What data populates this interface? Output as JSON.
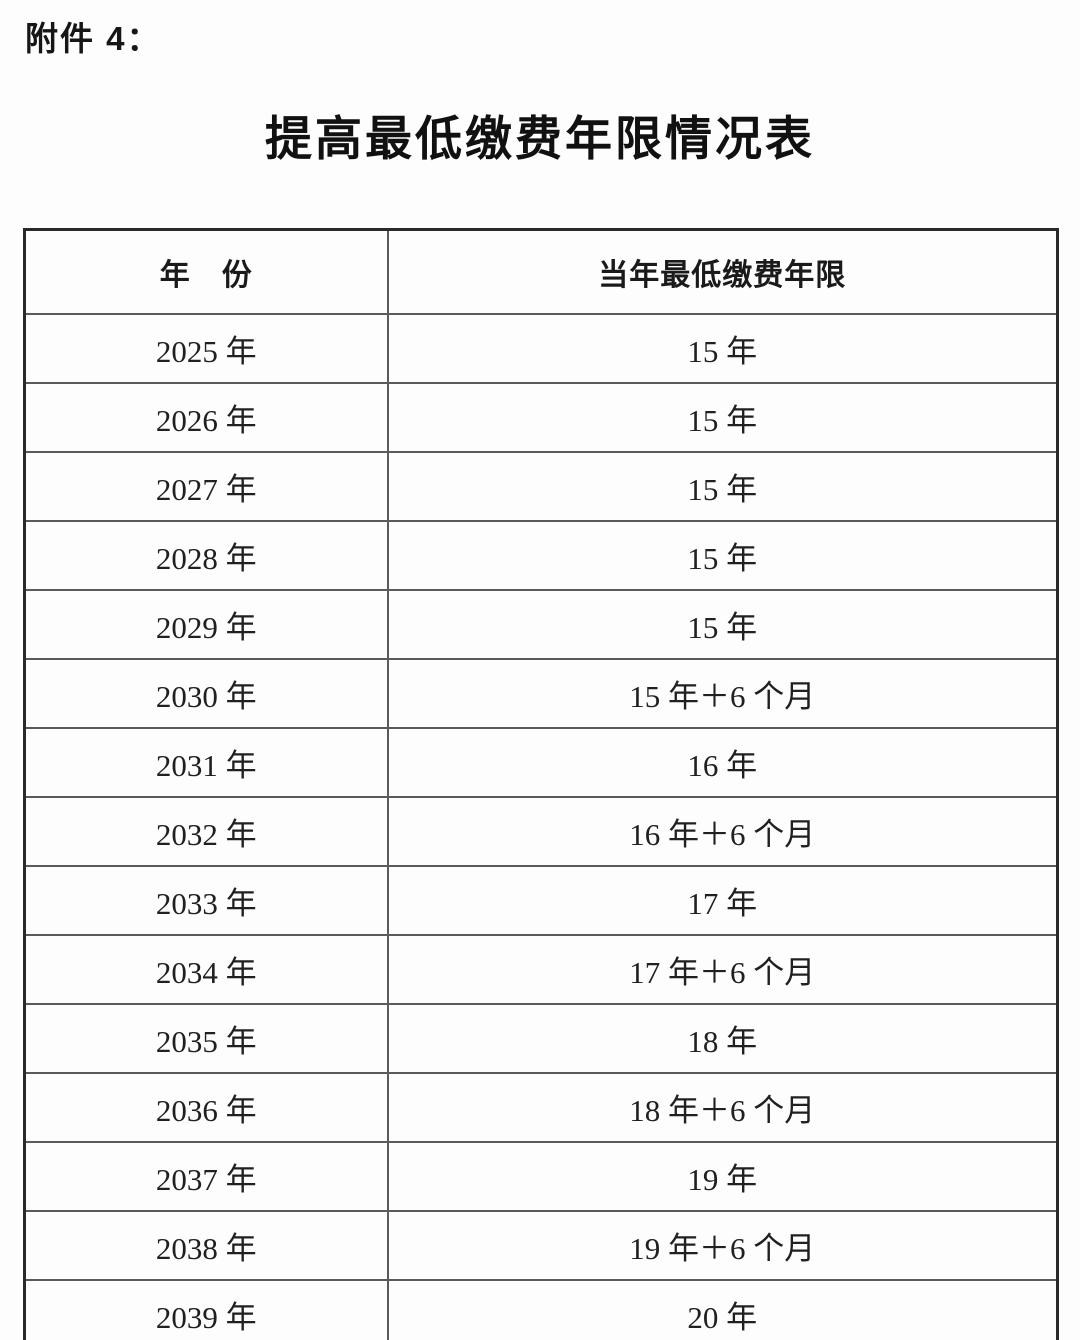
{
  "page": {
    "attachment_label": "附件 4：",
    "title": "提高最低缴费年限情况表"
  },
  "colors": {
    "background": "#fdfdfd",
    "text": "#1c1c1c",
    "table_border_outer": "#2a2a2a",
    "table_border_inner": "#5a5a5a"
  },
  "table": {
    "columns": [
      "年　份",
      "当年最低缴费年限"
    ],
    "rows": [
      {
        "year": "2025 年",
        "min_years": "15 年"
      },
      {
        "year": "2026 年",
        "min_years": "15 年"
      },
      {
        "year": "2027 年",
        "min_years": "15 年"
      },
      {
        "year": "2028 年",
        "min_years": "15 年"
      },
      {
        "year": "2029 年",
        "min_years": "15 年"
      },
      {
        "year": "2030 年",
        "min_years": "15 年＋6 个月"
      },
      {
        "year": "2031 年",
        "min_years": "16 年"
      },
      {
        "year": "2032 年",
        "min_years": "16 年＋6 个月"
      },
      {
        "year": "2033 年",
        "min_years": "17 年"
      },
      {
        "year": "2034 年",
        "min_years": "17 年＋6 个月"
      },
      {
        "year": "2035 年",
        "min_years": "18 年"
      },
      {
        "year": "2036 年",
        "min_years": "18 年＋6 个月"
      },
      {
        "year": "2037 年",
        "min_years": "19 年"
      },
      {
        "year": "2038 年",
        "min_years": "19 年＋6 个月"
      },
      {
        "year": "2039 年",
        "min_years": "20 年"
      }
    ]
  }
}
